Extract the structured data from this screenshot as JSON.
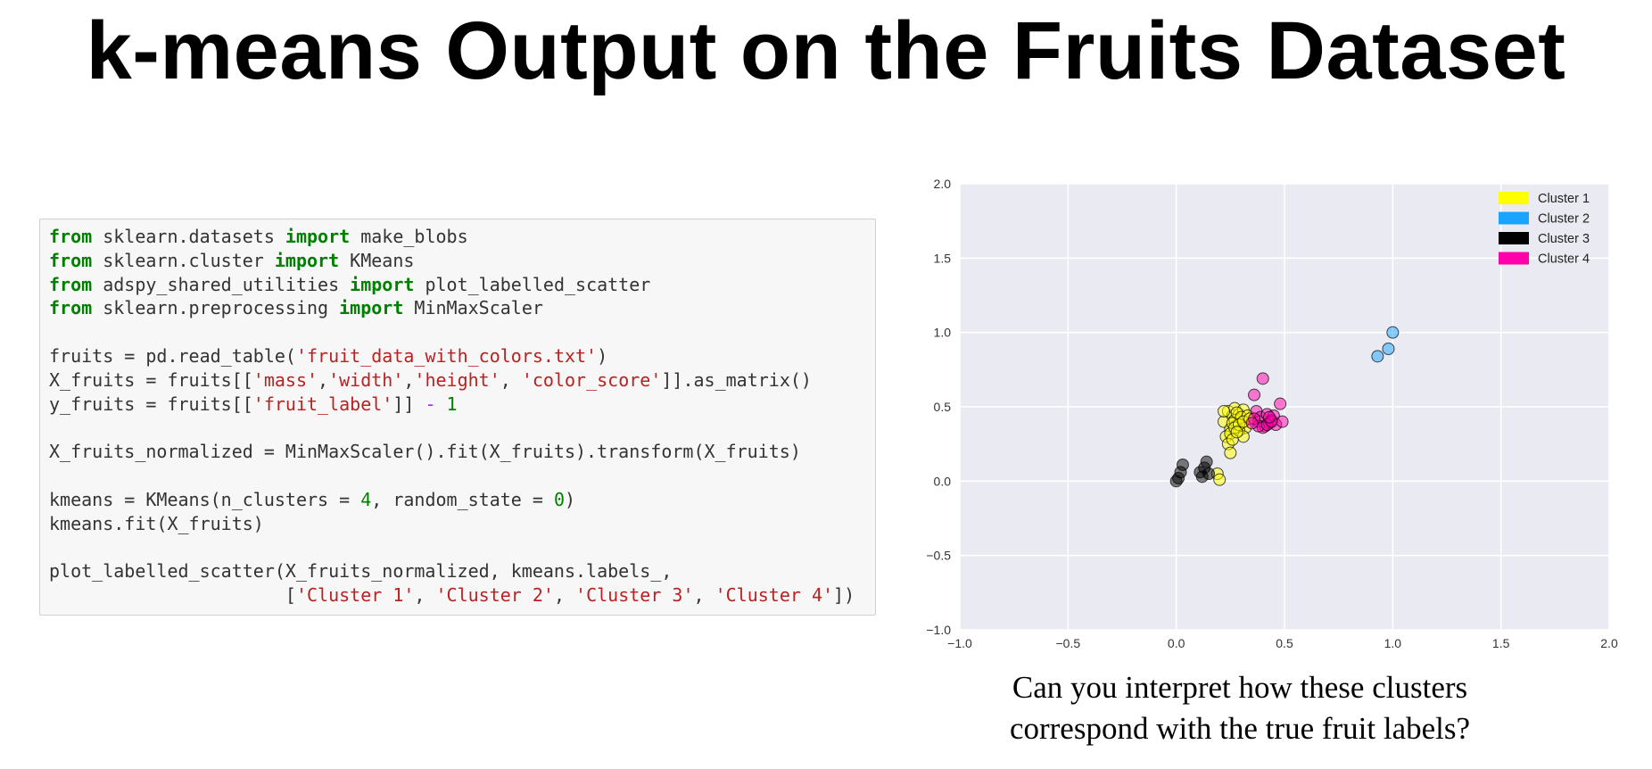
{
  "slide": {
    "title": "k-means Output on the Fruits Dataset",
    "caption": [
      "Can you interpret how these clusters",
      "correspond with the true fruit labels?"
    ]
  },
  "code": [
    [
      {
        "t": "kw",
        "v": "from"
      },
      {
        "t": "",
        "v": " sklearn.datasets "
      },
      {
        "t": "kw",
        "v": "import"
      },
      {
        "t": "",
        "v": " make_blobs"
      }
    ],
    [
      {
        "t": "kw",
        "v": "from"
      },
      {
        "t": "",
        "v": " sklearn.cluster "
      },
      {
        "t": "kw",
        "v": "import"
      },
      {
        "t": "",
        "v": " KMeans"
      }
    ],
    [
      {
        "t": "kw",
        "v": "from"
      },
      {
        "t": "",
        "v": " adspy_shared_utilities "
      },
      {
        "t": "kw",
        "v": "import"
      },
      {
        "t": "",
        "v": " plot_labelled_scatter"
      }
    ],
    [
      {
        "t": "kw",
        "v": "from"
      },
      {
        "t": "",
        "v": " sklearn.preprocessing "
      },
      {
        "t": "kw",
        "v": "import"
      },
      {
        "t": "",
        "v": " MinMaxScaler"
      }
    ],
    [],
    [
      {
        "t": "",
        "v": "fruits = pd.read_table("
      },
      {
        "t": "str",
        "v": "'fruit_data_with_colors.txt'"
      },
      {
        "t": "",
        "v": ")"
      }
    ],
    [
      {
        "t": "",
        "v": "X_fruits = fruits[["
      },
      {
        "t": "str",
        "v": "'mass'"
      },
      {
        "t": "",
        "v": ","
      },
      {
        "t": "str",
        "v": "'width'"
      },
      {
        "t": "",
        "v": ","
      },
      {
        "t": "str",
        "v": "'height'"
      },
      {
        "t": "",
        "v": ", "
      },
      {
        "t": "str",
        "v": "'color_score'"
      },
      {
        "t": "",
        "v": "]].as_matrix()"
      }
    ],
    [
      {
        "t": "",
        "v": "y_fruits = fruits[["
      },
      {
        "t": "str",
        "v": "'fruit_label'"
      },
      {
        "t": "",
        "v": "]] "
      },
      {
        "t": "op",
        "v": "-"
      },
      {
        "t": "",
        "v": " "
      },
      {
        "t": "num",
        "v": "1"
      }
    ],
    [],
    [
      {
        "t": "",
        "v": "X_fruits_normalized = MinMaxScaler().fit(X_fruits).transform(X_fruits)"
      }
    ],
    [],
    [
      {
        "t": "",
        "v": "kmeans = KMeans(n_clusters = "
      },
      {
        "t": "num",
        "v": "4"
      },
      {
        "t": "",
        "v": ", random_state = "
      },
      {
        "t": "num",
        "v": "0"
      },
      {
        "t": "",
        "v": ")"
      }
    ],
    [
      {
        "t": "",
        "v": "kmeans.fit(X_fruits)"
      }
    ],
    [],
    [
      {
        "t": "",
        "v": "plot_labelled_scatter(X_fruits_normalized, kmeans.labels_,"
      }
    ],
    [
      {
        "t": "",
        "v": "                      ["
      },
      {
        "t": "str",
        "v": "'Cluster 1'"
      },
      {
        "t": "",
        "v": ", "
      },
      {
        "t": "str",
        "v": "'Cluster 2'"
      },
      {
        "t": "",
        "v": ", "
      },
      {
        "t": "str",
        "v": "'Cluster 3'"
      },
      {
        "t": "",
        "v": ", "
      },
      {
        "t": "str",
        "v": "'Cluster 4'"
      },
      {
        "t": "",
        "v": "])"
      }
    ]
  ],
  "chart_data": {
    "type": "scatter",
    "title": "",
    "xlabel": "",
    "ylabel": "",
    "xlim": [
      -1.0,
      2.0
    ],
    "ylim": [
      -1.0,
      2.0
    ],
    "xticks": [
      -1.0,
      -0.5,
      0.0,
      0.5,
      1.0,
      1.5,
      2.0
    ],
    "yticks": [
      -1.0,
      -0.5,
      0.0,
      0.5,
      1.0,
      1.5,
      2.0
    ],
    "tick_labels_x": [
      "−1.0",
      "−0.5",
      "0.0",
      "0.5",
      "1.0",
      "1.5",
      "2.0"
    ],
    "tick_labels_y": [
      "−1.0",
      "−0.5",
      "0.0",
      "0.5",
      "1.0",
      "1.5",
      "2.0"
    ],
    "grid": true,
    "background": "#eaeaf2",
    "legend_position": "top-right",
    "series": [
      {
        "name": "Cluster 1",
        "color": "#ffff00",
        "x": [
          0.22,
          0.24,
          0.25,
          0.26,
          0.27,
          0.28,
          0.29,
          0.3,
          0.31,
          0.32,
          0.23,
          0.25,
          0.27,
          0.29,
          0.31,
          0.26,
          0.28,
          0.3,
          0.24,
          0.27,
          0.33,
          0.22,
          0.26,
          0.29,
          0.31,
          0.34,
          0.25,
          0.28,
          0.19,
          0.2
        ],
        "y": [
          0.4,
          0.47,
          0.35,
          0.44,
          0.49,
          0.38,
          0.45,
          0.42,
          0.48,
          0.36,
          0.3,
          0.32,
          0.41,
          0.34,
          0.3,
          0.39,
          0.46,
          0.43,
          0.25,
          0.36,
          0.44,
          0.47,
          0.28,
          0.38,
          0.4,
          0.42,
          0.19,
          0.33,
          0.05,
          0.01
        ]
      },
      {
        "name": "Cluster 2",
        "color": "#1aa3ff",
        "x": [
          0.93,
          0.98,
          1.0
        ],
        "y": [
          0.84,
          0.89,
          1.0
        ]
      },
      {
        "name": "Cluster 3",
        "color": "#000000",
        "x": [
          0.0,
          0.01,
          0.02,
          0.03,
          0.11,
          0.12,
          0.13,
          0.14,
          0.15
        ],
        "y": [
          0.0,
          0.02,
          0.06,
          0.11,
          0.06,
          0.03,
          0.09,
          0.13,
          0.05
        ]
      },
      {
        "name": "Cluster 4",
        "color": "#ff00aa",
        "x": [
          0.36,
          0.37,
          0.38,
          0.39,
          0.4,
          0.41,
          0.42,
          0.43,
          0.44,
          0.45,
          0.46,
          0.48,
          0.49,
          0.4,
          0.38,
          0.36,
          0.42,
          0.44,
          0.35,
          0.43
        ],
        "y": [
          0.58,
          0.47,
          0.4,
          0.43,
          0.69,
          0.37,
          0.45,
          0.39,
          0.41,
          0.44,
          0.38,
          0.52,
          0.4,
          0.36,
          0.37,
          0.42,
          0.38,
          0.4,
          0.39,
          0.43
        ]
      }
    ]
  }
}
